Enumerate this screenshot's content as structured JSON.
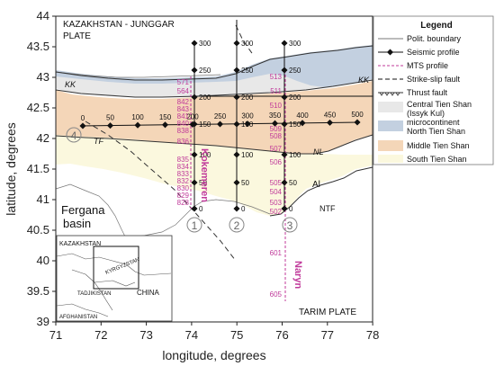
{
  "axes": {
    "xlabel": "longitude, degrees",
    "ylabel": "latitude, degrees",
    "x_ticks": [
      "71",
      "72",
      "73",
      "74",
      "75",
      "76",
      "77",
      "78"
    ],
    "y_ticks": [
      "44",
      "43.5",
      "43",
      "42.5",
      "42",
      "41.5",
      "41",
      "40.5",
      "40",
      "39.5",
      "39"
    ]
  },
  "map_labels": {
    "plate_north_1": "KAZAKHSTAN - JUNGGAR",
    "plate_north_2": "PLATE",
    "plate_south": "TARIM PLATE",
    "basin_1": "Fergana",
    "basin_2": "basin",
    "kk_west": "KK",
    "kk_east": "KK",
    "tf": "TF",
    "nl": "NL",
    "al": "Al",
    "ntf": "NTF",
    "profile_4": "4",
    "profile_1": "1",
    "profile_2": "2",
    "profile_3": "3",
    "mts_west_name": "Kokemeren",
    "mts_east_name": "Naryn"
  },
  "seismic_profiles": {
    "ew_distance_labels": [
      "0",
      "50",
      "100",
      "150",
      "200",
      "250",
      "300",
      "350",
      "400",
      "450",
      "500"
    ],
    "ns_distance_labels": [
      "300",
      "250",
      "200",
      "150",
      "100",
      "50",
      "0"
    ]
  },
  "mts_profiles": {
    "west_sites": [
      "571",
      "564",
      "842",
      "843",
      "841",
      "840",
      "838",
      "836",
      "835",
      "834",
      "833",
      "832",
      "830",
      "829",
      "828"
    ],
    "east_sites": [
      "513",
      "511",
      "510",
      "509",
      "508",
      "507",
      "506",
      "505",
      "504",
      "503",
      "502",
      "601",
      "605"
    ]
  },
  "inset": {
    "kazakhstan": "KAZAKHSTAN",
    "kyrgyzstan": "KYRGYZSTAN",
    "tajikistan": "TADJIKISTAN",
    "china": "CHINA",
    "afghanistan": "AFGHANISTAN"
  },
  "legend": {
    "title": "Legend",
    "items": [
      {
        "label": "Polit. boundary"
      },
      {
        "label": "Seismic profile"
      },
      {
        "label": "MTS profile"
      },
      {
        "label": "Strike-slip fault"
      },
      {
        "label": "Thrust fault"
      },
      {
        "label": "Central Tien Shan"
      },
      {
        "label": "(Issyk Kul)"
      },
      {
        "label": "microcontinent"
      },
      {
        "label": "North Tien Shan"
      },
      {
        "label": "Middle Tien Shan"
      },
      {
        "label": "South Tien Shan"
      }
    ]
  },
  "colors": {
    "north_tien_shan": "#c3d0e0",
    "middle_tien_shan": "#f4d6b8",
    "south_tien_shan": "#fbf8de",
    "central_tien_shan": "#e8e8e8",
    "mts": "#c0399a",
    "seismic": "#111111"
  }
}
